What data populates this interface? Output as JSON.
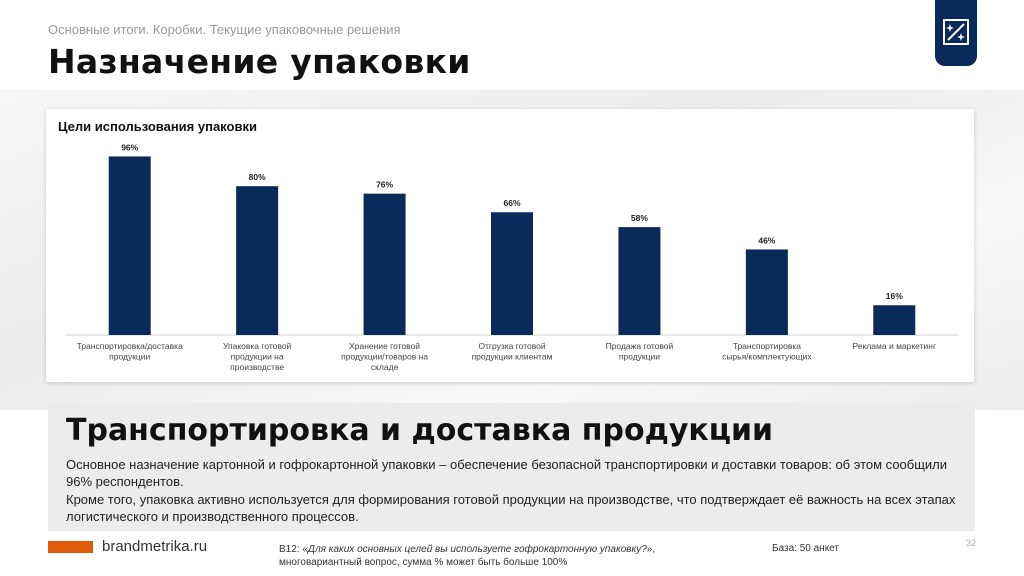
{
  "header": {
    "subtitle": "Основные итоги. Коробки. Текущие упаковочные решения",
    "title": "Назначение упаковки"
  },
  "logo": {
    "icon": "sparkle-frame-icon",
    "color": "#0b2a5c"
  },
  "chart_data": {
    "type": "bar",
    "title": "Цели использования упаковки",
    "categories": [
      [
        "Транспортировка/доставка",
        "продукции"
      ],
      [
        "Упаковка готовой",
        "продукции на",
        "производстве"
      ],
      [
        "Хранение готовой",
        "продукции/товаров на",
        "складе"
      ],
      [
        "Отгрузка готовой",
        "продукции клиентам"
      ],
      [
        "Продажа готовой",
        "продукции"
      ],
      [
        "Транспортировка",
        "сырья/комплектующих"
      ],
      [
        "Реклама и маркетинг"
      ]
    ],
    "values": [
      96,
      80,
      76,
      66,
      58,
      46,
      16
    ],
    "value_labels": [
      "96%",
      "80%",
      "76%",
      "66%",
      "58%",
      "46%",
      "16%"
    ],
    "ylim": [
      0,
      100
    ],
    "bar_color": "#0b2a5c",
    "grid": false
  },
  "summary": {
    "heading": "Транспортировка и доставка продукции",
    "paragraph1": "Основное назначение картонной и гофрокартонной упаковки – обеспечение безопасной транспортировки и доставки товаров: об этом сообщили 96% респондентов.",
    "paragraph2": "Кроме того, упаковка активно используется для формирования готовой продукции на производстве, что подтверждает её важность на всех этапах логистического и производственного процессов."
  },
  "footer": {
    "site": "brandmetrika.ru",
    "question_code": "B12: «",
    "question_text": "Для каких основных целей вы используете гофрокартонную упаковку?",
    "question_end": "»,",
    "question_note": "многовариантный вопрос, сумма % может быть больше 100%",
    "base": "База: 50 анкет",
    "page_number": "32",
    "accent_color": "#e05a0c"
  }
}
